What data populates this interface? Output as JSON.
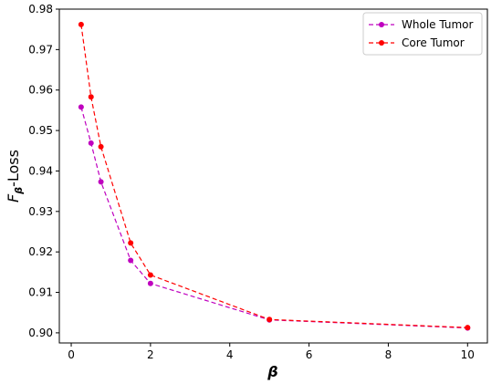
{
  "chart_data": {
    "type": "line",
    "xlabel": "β",
    "ylabel_main": "F",
    "ylabel_sub": "β",
    "ylabel_rest": "-Loss",
    "xlim": [
      -0.3,
      10.5
    ],
    "ylim": [
      0.8975,
      0.98
    ],
    "xticks": [
      0,
      2,
      4,
      6,
      8,
      10
    ],
    "xtick_labels": [
      "0",
      "2",
      "4",
      "6",
      "8",
      "10"
    ],
    "yticks": [
      0.9,
      0.91,
      0.92,
      0.93,
      0.94,
      0.95,
      0.96,
      0.97,
      0.98
    ],
    "ytick_labels": [
      "0.90",
      "0.91",
      "0.92",
      "0.93",
      "0.94",
      "0.95",
      "0.96",
      "0.97",
      "0.98"
    ],
    "grid": false,
    "legend_position": "top-right",
    "series": [
      {
        "name": "Whole Tumor",
        "color": "#bf00bf",
        "line_style": "dashed",
        "marker": "circle",
        "x": [
          0.25,
          0.5,
          0.75,
          1.5,
          2,
          5,
          10
        ],
        "y": [
          0.9558,
          0.9469,
          0.9373,
          0.9179,
          0.9122,
          0.9032,
          0.9012
        ]
      },
      {
        "name": "Core Tumor",
        "color": "#ff0000",
        "line_style": "dashed",
        "marker": "circle",
        "x": [
          0.25,
          0.5,
          0.75,
          1.5,
          2,
          5,
          10
        ],
        "y": [
          0.9762,
          0.9583,
          0.946,
          0.9222,
          0.9143,
          0.9033,
          0.9013
        ]
      }
    ]
  }
}
